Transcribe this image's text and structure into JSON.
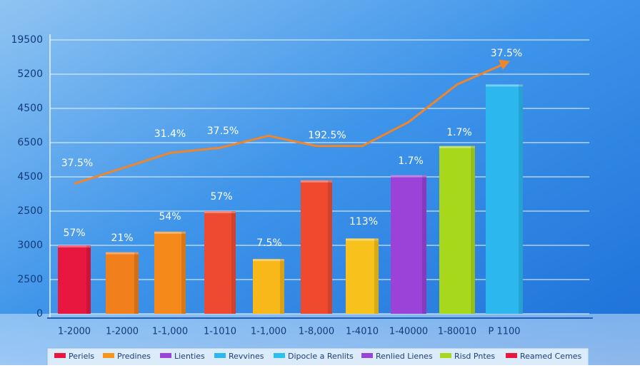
{
  "chart_data": {
    "type": "bar",
    "categories": [
      "1-2000",
      "1-2000",
      "1-1,000",
      "1-1010",
      "1-1,000",
      "1-8,000",
      "1-4010",
      "1-40000",
      "1-80010",
      "P 1100"
    ],
    "values": [
      2.0,
      1.8,
      2.4,
      3.0,
      1.6,
      3.9,
      2.2,
      4.05,
      4.9,
      6.7
    ],
    "colors": [
      "#e8173f",
      "#f07f1c",
      "#f5891a",
      "#ee4a32",
      "#f8b81a",
      "#ef4a2e",
      "#f8c21c",
      "#9b42d8",
      "#a8d81c",
      "#2cb8ef"
    ],
    "line": {
      "values": [
        3.8,
        4.25,
        4.7,
        4.85,
        5.2,
        4.9,
        4.9,
        5.6,
        6.7,
        7.3
      ],
      "color": "#f0852a"
    },
    "ylim": [
      0,
      8
    ],
    "yticks": [
      {
        "value": 0,
        "label": "0"
      },
      {
        "value": 1,
        "label": "2500"
      },
      {
        "value": 2,
        "label": "3000"
      },
      {
        "value": 3,
        "label": "2500"
      },
      {
        "value": 4,
        "label": "4500"
      },
      {
        "value": 5,
        "label": "6500"
      },
      {
        "value": 6,
        "label": "4500"
      },
      {
        "value": 7,
        "label": "5200"
      },
      {
        "value": 8,
        "label": "19500"
      }
    ],
    "grid": true,
    "annotations": [
      "57%",
      "21%",
      "54%",
      "57%",
      "7.5%",
      "113%",
      "1.7%",
      "1.7%",
      "37.5%",
      "37.5%",
      "31.4%",
      "37.5%",
      "192.5%"
    ],
    "legend": [
      {
        "label": "Periels",
        "color": "#e8173f"
      },
      {
        "label": "Predines",
        "color": "#f5951a"
      },
      {
        "label": "Lienties",
        "color": "#9b42d8"
      },
      {
        "label": "Revvines",
        "color": "#2cb8ef"
      },
      {
        "label": "Dipocle a Renlits",
        "color": "#2cc0ef"
      },
      {
        "label": "Renlied Lienes",
        "color": "#9b42d8"
      },
      {
        "label": "Risd Pntes",
        "color": "#a8d81c"
      },
      {
        "label": "Reamed Cemes",
        "color": "#e8173f"
      }
    ]
  }
}
